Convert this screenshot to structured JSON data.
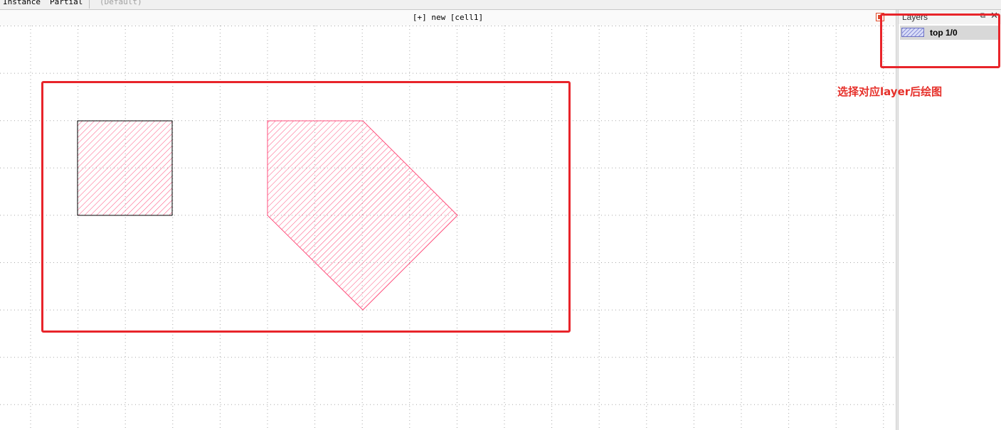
{
  "toolbar": {
    "instance_label": "Instance",
    "partial_label": "Partial",
    "default_label": "(Default)"
  },
  "canvas": {
    "title": "[+] new [cell1]",
    "grid_color": "#a8a8a8",
    "shape_color": "#ff4f7c"
  },
  "layers_panel": {
    "title": "Layers",
    "layers": [
      {
        "name": "top 1/0",
        "selected": true
      }
    ]
  },
  "annotation": {
    "text": "选择对应layer后绘图",
    "color": "#e6302a"
  },
  "icons": {
    "panel_toggle": "panel-toggle-icon",
    "float": "float-window-icon",
    "close": "close-icon"
  }
}
